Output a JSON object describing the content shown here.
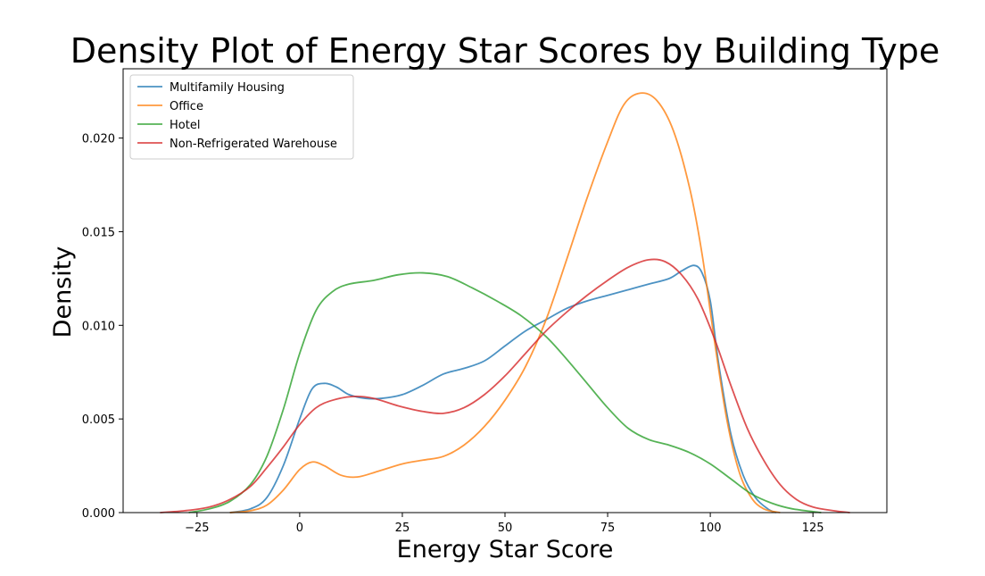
{
  "chart_data": {
    "type": "line",
    "title": "Density Plot of Energy Star Scores by Building Type",
    "xlabel": "Energy Star Score",
    "ylabel": "Density",
    "xlim": [
      -43,
      143
    ],
    "ylim": [
      0,
      0.0237
    ],
    "xticks": [
      {
        "value": -25,
        "label": "−25"
      },
      {
        "value": 0,
        "label": "0"
      },
      {
        "value": 25,
        "label": "25"
      },
      {
        "value": 50,
        "label": "50"
      },
      {
        "value": 75,
        "label": "75"
      },
      {
        "value": 100,
        "label": "100"
      },
      {
        "value": 125,
        "label": "125"
      }
    ],
    "yticks": [
      {
        "value": 0,
        "label": "0.000"
      },
      {
        "value": 0.005,
        "label": "0.005"
      },
      {
        "value": 0.01,
        "label": "0.010"
      },
      {
        "value": 0.015,
        "label": "0.015"
      },
      {
        "value": 0.02,
        "label": "0.020"
      }
    ],
    "grid": false,
    "legend_position": "top-left",
    "series": [
      {
        "name": "Multifamily Housing",
        "color": "#1f77b4",
        "points": [
          [
            -17,
            0
          ],
          [
            -12,
            0.0002
          ],
          [
            -8,
            0.0008
          ],
          [
            -4,
            0.0025
          ],
          [
            0,
            0.005
          ],
          [
            3,
            0.0066
          ],
          [
            6,
            0.0069
          ],
          [
            9,
            0.0067
          ],
          [
            12,
            0.0063
          ],
          [
            16,
            0.0061
          ],
          [
            20,
            0.0061
          ],
          [
            25,
            0.0063
          ],
          [
            30,
            0.0068
          ],
          [
            35,
            0.0074
          ],
          [
            40,
            0.0077
          ],
          [
            45,
            0.0081
          ],
          [
            50,
            0.0089
          ],
          [
            55,
            0.0097
          ],
          [
            60,
            0.0103
          ],
          [
            65,
            0.0109
          ],
          [
            70,
            0.0113
          ],
          [
            75,
            0.0116
          ],
          [
            80,
            0.0119
          ],
          [
            85,
            0.0122
          ],
          [
            90,
            0.0125
          ],
          [
            93,
            0.0129
          ],
          [
            96,
            0.0132
          ],
          [
            98,
            0.0128
          ],
          [
            100,
            0.0113
          ],
          [
            102,
            0.008
          ],
          [
            105,
            0.0042
          ],
          [
            108,
            0.002
          ],
          [
            111,
            0.0008
          ],
          [
            114,
            0.0002
          ],
          [
            116,
            0
          ]
        ]
      },
      {
        "name": "Office",
        "color": "#ff7f0e",
        "points": [
          [
            -17,
            0
          ],
          [
            -12,
            0.0001
          ],
          [
            -8,
            0.0004
          ],
          [
            -4,
            0.0012
          ],
          [
            0,
            0.0023
          ],
          [
            3,
            0.0027
          ],
          [
            6,
            0.0025
          ],
          [
            10,
            0.002
          ],
          [
            14,
            0.0019
          ],
          [
            19,
            0.0022
          ],
          [
            25,
            0.0026
          ],
          [
            30,
            0.0028
          ],
          [
            35,
            0.003
          ],
          [
            40,
            0.0036
          ],
          [
            45,
            0.0046
          ],
          [
            50,
            0.006
          ],
          [
            55,
            0.0078
          ],
          [
            60,
            0.0103
          ],
          [
            65,
            0.0135
          ],
          [
            70,
            0.0168
          ],
          [
            75,
            0.0198
          ],
          [
            79,
            0.0218
          ],
          [
            83,
            0.0224
          ],
          [
            87,
            0.022
          ],
          [
            91,
            0.0204
          ],
          [
            95,
            0.0173
          ],
          [
            98,
            0.0138
          ],
          [
            101,
            0.0092
          ],
          [
            104,
            0.005
          ],
          [
            107,
            0.0022
          ],
          [
            110,
            0.0008
          ],
          [
            113,
            0.0002
          ],
          [
            117,
            0
          ]
        ]
      },
      {
        "name": "Hotel",
        "color": "#2ca02c",
        "points": [
          [
            -27,
            0
          ],
          [
            -22,
            0.0002
          ],
          [
            -17,
            0.0006
          ],
          [
            -12,
            0.0015
          ],
          [
            -8,
            0.003
          ],
          [
            -4,
            0.0055
          ],
          [
            0,
            0.0085
          ],
          [
            4,
            0.0108
          ],
          [
            8,
            0.0118
          ],
          [
            12,
            0.0122
          ],
          [
            18,
            0.0124
          ],
          [
            24,
            0.0127
          ],
          [
            30,
            0.0128
          ],
          [
            36,
            0.0126
          ],
          [
            42,
            0.012
          ],
          [
            48,
            0.0113
          ],
          [
            54,
            0.0105
          ],
          [
            60,
            0.0094
          ],
          [
            65,
            0.0082
          ],
          [
            70,
            0.0069
          ],
          [
            75,
            0.0056
          ],
          [
            80,
            0.0045
          ],
          [
            85,
            0.0039
          ],
          [
            90,
            0.0036
          ],
          [
            95,
            0.0032
          ],
          [
            100,
            0.0026
          ],
          [
            105,
            0.0018
          ],
          [
            110,
            0.001
          ],
          [
            115,
            0.0005
          ],
          [
            120,
            0.0002
          ],
          [
            127,
            0
          ]
        ]
      },
      {
        "name": "Non-Refrigerated Warehouse",
        "color": "#d62728",
        "points": [
          [
            -34,
            0
          ],
          [
            -28,
            0.0001
          ],
          [
            -22,
            0.0003
          ],
          [
            -17,
            0.0007
          ],
          [
            -12,
            0.0014
          ],
          [
            -8,
            0.0024
          ],
          [
            -4,
            0.0035
          ],
          [
            0,
            0.0047
          ],
          [
            4,
            0.0056
          ],
          [
            8,
            0.006
          ],
          [
            13,
            0.0062
          ],
          [
            18,
            0.0061
          ],
          [
            24,
            0.0057
          ],
          [
            30,
            0.0054
          ],
          [
            35,
            0.0053
          ],
          [
            40,
            0.0056
          ],
          [
            45,
            0.0063
          ],
          [
            50,
            0.0073
          ],
          [
            55,
            0.0085
          ],
          [
            60,
            0.0097
          ],
          [
            65,
            0.0107
          ],
          [
            70,
            0.0116
          ],
          [
            75,
            0.0124
          ],
          [
            80,
            0.0131
          ],
          [
            85,
            0.0135
          ],
          [
            89,
            0.0134
          ],
          [
            93,
            0.0127
          ],
          [
            97,
            0.0114
          ],
          [
            101,
            0.0093
          ],
          [
            105,
            0.0068
          ],
          [
            109,
            0.0045
          ],
          [
            113,
            0.0028
          ],
          [
            117,
            0.0015
          ],
          [
            121,
            0.0007
          ],
          [
            125,
            0.0003
          ],
          [
            130,
            0.0001
          ],
          [
            134,
            0
          ]
        ]
      }
    ]
  }
}
